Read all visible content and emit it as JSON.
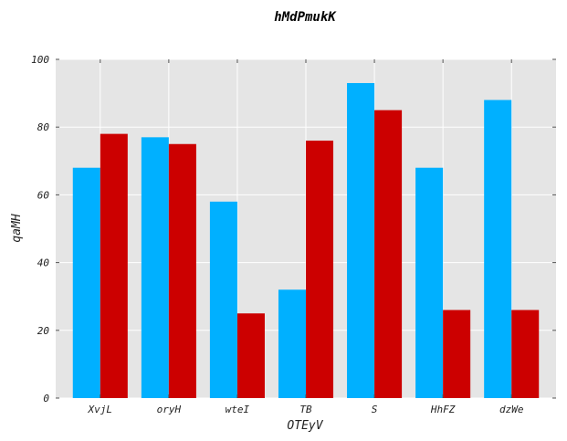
{
  "chart_data": {
    "type": "bar",
    "title": "hMdPmukK",
    "xlabel": "OTEyV",
    "ylabel": "qaMH",
    "categories": [
      "XvjL",
      "oryH",
      "wteI",
      "TB",
      "S",
      "HhFZ",
      "dzWe"
    ],
    "series": [
      {
        "values": [
          68,
          77,
          58,
          32,
          93,
          68,
          88
        ]
      },
      {
        "values": [
          78,
          75,
          25,
          76,
          85,
          26,
          26
        ]
      }
    ],
    "ylim": [
      0,
      100
    ],
    "yticks": [
      0,
      20,
      40,
      60,
      80,
      100
    ],
    "grid": true,
    "legend": "none",
    "colors": {
      "series": [
        "#00b0ff",
        "#cc0000"
      ],
      "plot_background": "#e5e5e5",
      "grid": "#ffffff"
    }
  }
}
